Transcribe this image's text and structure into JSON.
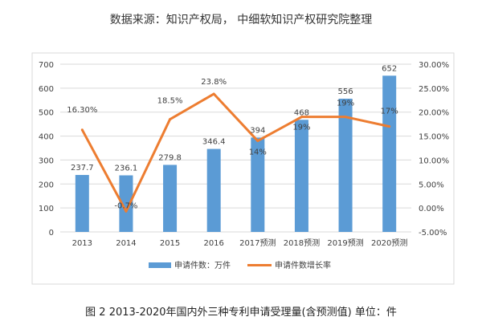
{
  "source_note": "数据来源：知识产权局， 中细软知识产权研究院整理",
  "caption": "图 2 2013-2020年国内外三种专利申请受理量(含预测值) 单位：件",
  "chart_data": {
    "type": "bar+line",
    "categories": [
      "2013",
      "2014",
      "2015",
      "2016",
      "2017预测",
      "2018预测",
      "2019预测",
      "2020预测"
    ],
    "series": [
      {
        "name": "申请件数：万件",
        "type": "bar",
        "axis": "left",
        "color": "#5B9BD5",
        "values": [
          237.7,
          236.1,
          279.8,
          346.4,
          394,
          468,
          556,
          652
        ],
        "labels": [
          "237.7",
          "236.1",
          "279.8",
          "346.4",
          "394",
          "468",
          "556",
          "652"
        ]
      },
      {
        "name": "申请件数增长率",
        "type": "line",
        "axis": "right",
        "color": "#ED7D31",
        "values": [
          16.3,
          -0.7,
          18.5,
          23.8,
          14,
          19,
          19,
          17
        ],
        "labels": [
          "16.30%",
          "-0.7%",
          "18.5%",
          "23.8%",
          "14%",
          "19%",
          "19%",
          "17%"
        ]
      }
    ],
    "left_axis": {
      "ylim": [
        0,
        700
      ],
      "ticks": [
        "0",
        "100",
        "200",
        "300",
        "400",
        "500",
        "600",
        "700"
      ]
    },
    "right_axis": {
      "ylim": [
        -5,
        30
      ],
      "ticks": [
        "-5.00%",
        "0.00%",
        "5.00%",
        "10.00%",
        "15.00%",
        "20.00%",
        "25.00%",
        "30.00%"
      ]
    },
    "grid": true,
    "legend": "bottom"
  }
}
